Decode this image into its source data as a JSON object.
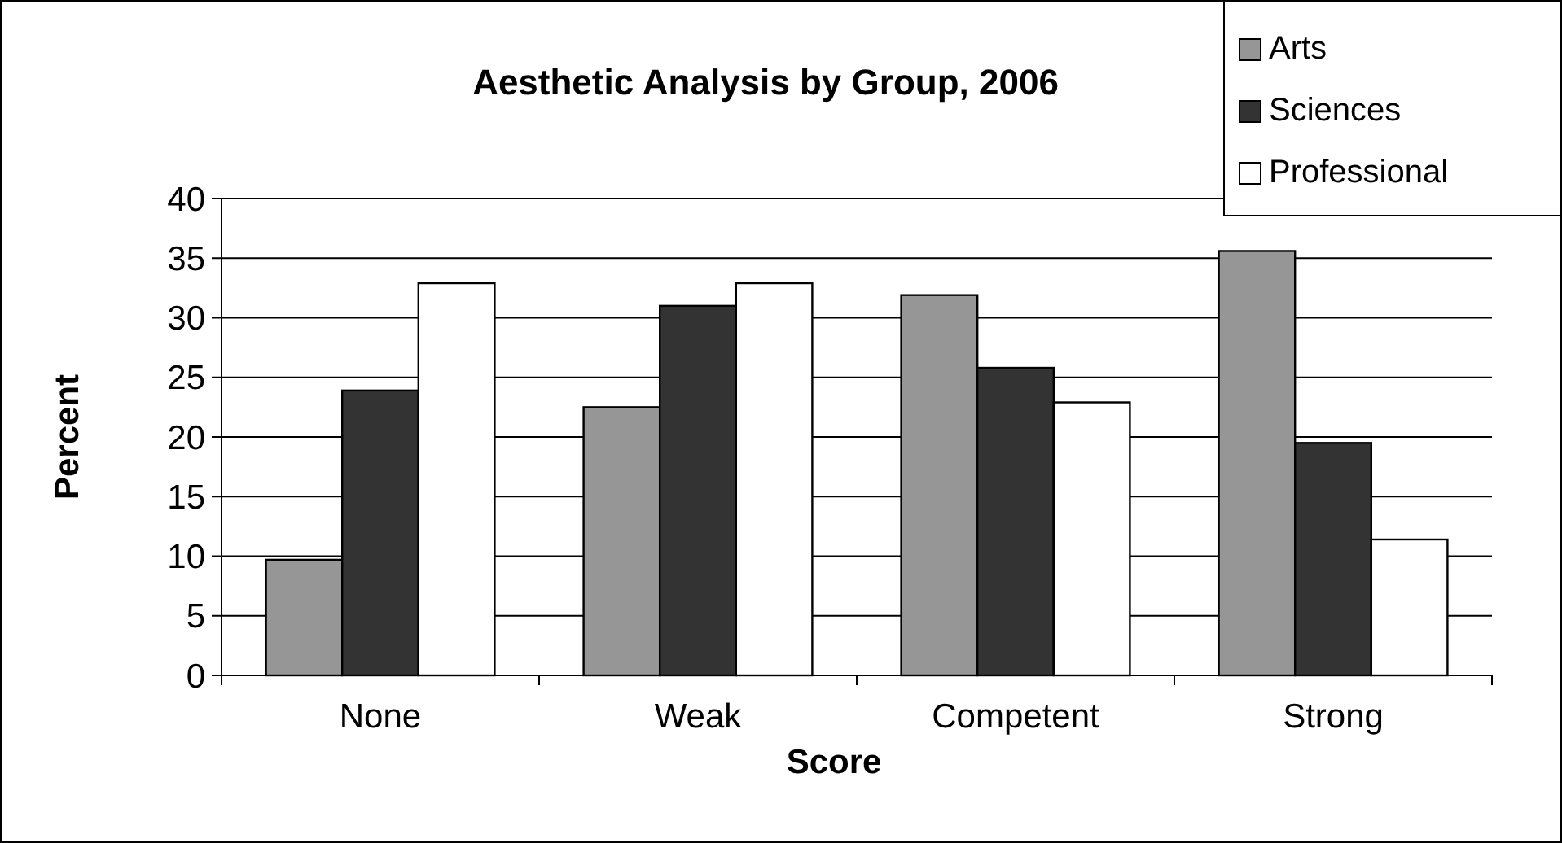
{
  "chart_data": {
    "type": "bar",
    "title": "Aesthetic Analysis by Group, 2006",
    "xlabel": "Score",
    "ylabel": "Percent",
    "categories": [
      "None",
      "Weak",
      "Competent",
      "Strong"
    ],
    "series": [
      {
        "name": "Arts",
        "color": "#969696",
        "values": [
          9.7,
          22.5,
          31.9,
          35.6
        ]
      },
      {
        "name": "Sciences",
        "color": "#333333",
        "values": [
          23.9,
          31,
          25.8,
          19.5
        ]
      },
      {
        "name": "Professional",
        "color": "#ffffff",
        "values": [
          32.9,
          32.9,
          22.9,
          11.4
        ]
      }
    ],
    "ylim": [
      0,
      40
    ],
    "yticks": [
      0,
      5,
      10,
      15,
      20,
      25,
      30,
      35,
      40
    ],
    "grid": "y",
    "legend": "top right"
  }
}
